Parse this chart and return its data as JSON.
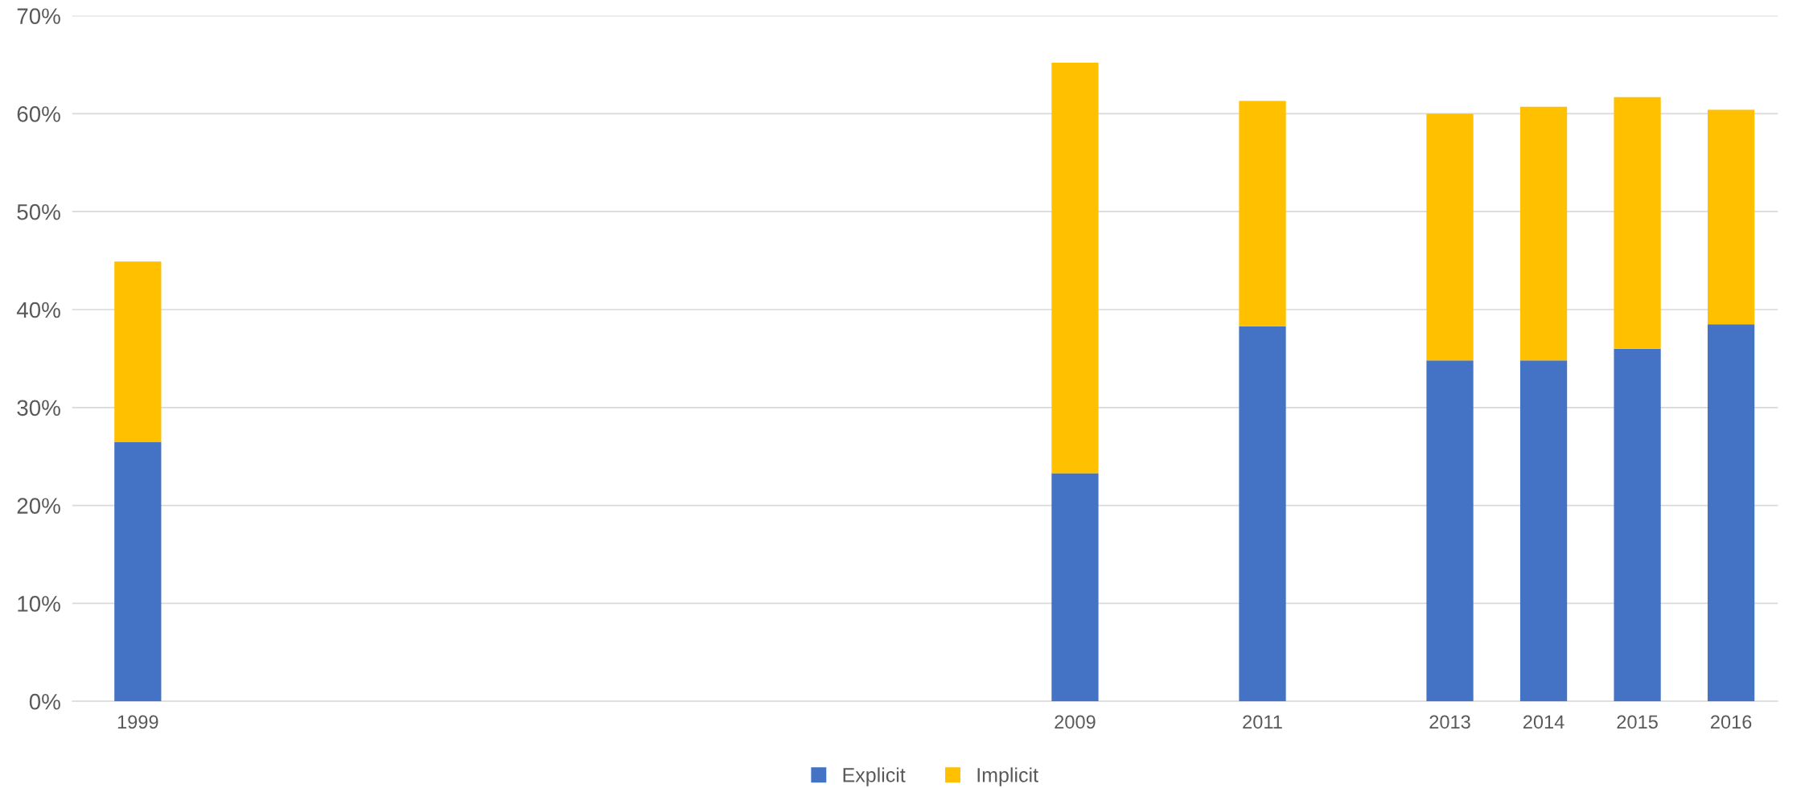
{
  "chart_data": {
    "type": "bar",
    "stacked": true,
    "x": [
      1999,
      2009,
      2011,
      2013,
      2014,
      2015,
      2016
    ],
    "xlim": [
      1998.3,
      2016.5
    ],
    "xticks": [
      1999,
      2009,
      2011,
      2013,
      2014,
      2015,
      2016
    ],
    "series": [
      {
        "name": "Explicit",
        "color": "#4472c4",
        "values": [
          26.5,
          23.3,
          38.3,
          34.8,
          34.8,
          36.0,
          38.5
        ]
      },
      {
        "name": "Implicit",
        "color": "#ffc000",
        "values": [
          18.4,
          41.9,
          23.0,
          25.2,
          25.9,
          25.7,
          21.9
        ]
      }
    ],
    "ylim": [
      0,
      70
    ],
    "yticks": [
      {
        "value": 0,
        "label": "0%"
      },
      {
        "value": 10,
        "label": "10%"
      },
      {
        "value": 20,
        "label": "20%"
      },
      {
        "value": 30,
        "label": "30%"
      },
      {
        "value": 40,
        "label": "40%"
      },
      {
        "value": 50,
        "label": "50%"
      },
      {
        "value": 60,
        "label": "60%"
      },
      {
        "value": 70,
        "label": "70%"
      }
    ],
    "grid": "y",
    "legend": "bottom"
  }
}
